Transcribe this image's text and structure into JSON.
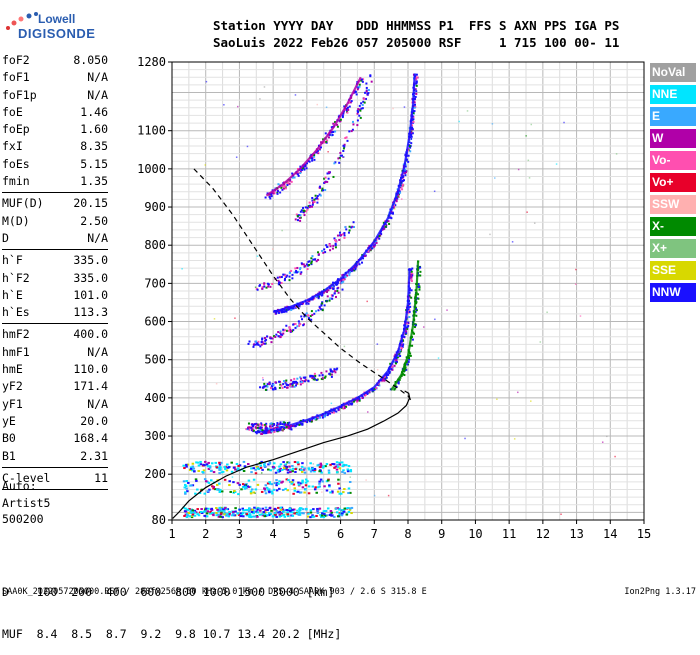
{
  "logo": {
    "line1": "Lowell",
    "line2": "DIGISONDE"
  },
  "header": {
    "line1": "Station YYYY DAY   DDD HHMMSS P1  FFS S AXN PPS IGA PS",
    "line2": "SaoLuis 2022 Feb26 057 205000 RSF     1 715 100 00- 11"
  },
  "params": [
    [
      {
        "k": "foF2",
        "v": "8.050"
      },
      {
        "k": "foF1",
        "v": "N/A"
      },
      {
        "k": "foF1p",
        "v": "N/A"
      },
      {
        "k": "foE",
        "v": "1.46"
      },
      {
        "k": "foEp",
        "v": "1.60"
      },
      {
        "k": "fxI",
        "v": "8.35"
      },
      {
        "k": "foEs",
        "v": "5.15"
      },
      {
        "k": "fmin",
        "v": "1.35"
      }
    ],
    [
      {
        "k": "MUF(D)",
        "v": "20.15"
      },
      {
        "k": "M(D)",
        "v": "2.50"
      },
      {
        "k": "D",
        "v": "N/A"
      }
    ],
    [
      {
        "k": "h`F",
        "v": "335.0"
      },
      {
        "k": "h`F2",
        "v": "335.0"
      },
      {
        "k": "h`E",
        "v": "101.0"
      },
      {
        "k": "h`Es",
        "v": "113.3"
      }
    ],
    [
      {
        "k": "hmF2",
        "v": "400.0"
      },
      {
        "k": "hmF1",
        "v": "N/A"
      },
      {
        "k": "hmE",
        "v": "110.0"
      },
      {
        "k": "yF2",
        "v": "171.4"
      },
      {
        "k": "yF1",
        "v": "N/A"
      },
      {
        "k": "yE",
        "v": "20.0"
      },
      {
        "k": "B0",
        "v": "168.4"
      },
      {
        "k": "B1",
        "v": "2.31"
      }
    ],
    [
      {
        "k": "C-level",
        "v": "11"
      }
    ]
  ],
  "auto": {
    "l1": "Auto:",
    "l2": "Artist5",
    "l3": "500200"
  },
  "legend": [
    {
      "label": "NoVal",
      "color": "#a0a0a0"
    },
    {
      "label": "NNE",
      "color": "#00e5ff"
    },
    {
      "label": "E",
      "color": "#39a9ff"
    },
    {
      "label": "W",
      "color": "#b000a8"
    },
    {
      "label": "Vo-",
      "color": "#ff4fb0"
    },
    {
      "label": "Vo+",
      "color": "#e8002a"
    },
    {
      "label": "SSW",
      "color": "#ffb0b0"
    },
    {
      "label": "X-",
      "color": "#008a00"
    },
    {
      "label": "X+",
      "color": "#7fc47f"
    },
    {
      "label": "SSE",
      "color": "#d8d800"
    },
    {
      "label": "NNW",
      "color": "#1a10ff"
    }
  ],
  "bottom": {
    "l1": "D    100  200  400  600  800 1000 1500 3000 [km]",
    "l2": "MUF  8.4  8.5  8.7  9.2  9.8 10.7 13.4 20.2 [MHz]"
  },
  "footer": "SAA0K_2022057205000.RSF / 280fx256h 50 kHz 5.0 km / DPS-4 SAA0K 903 / 2.6 S 315.8 E",
  "version": "Ion2Png 1.3.17",
  "chart_data": {
    "type": "scatter",
    "title": "",
    "xlabel": "",
    "ylabel": "",
    "xlim": [
      1,
      15
    ],
    "ylim": [
      80,
      1280
    ],
    "x_ticks": [
      1,
      2,
      3,
      4,
      5,
      6,
      7,
      8,
      9,
      10,
      11,
      12,
      13,
      14,
      15
    ],
    "y_ticks": [
      80,
      200,
      300,
      400,
      500,
      600,
      700,
      800,
      900,
      1000,
      1100,
      1280
    ],
    "grid": true,
    "profile": {
      "x": [
        1.02,
        1.2,
        1.5,
        2.0,
        2.6,
        3.2,
        4.0,
        4.8,
        5.5,
        6.2,
        6.8,
        7.3,
        7.7,
        7.95,
        8.05,
        8.02,
        7.9
      ],
      "y": [
        84,
        100,
        130,
        165,
        195,
        218,
        238,
        262,
        283,
        300,
        318,
        340,
        360,
        380,
        400,
        412,
        418
      ]
    },
    "profile_dashed": {
      "x": [
        1.65,
        2.2,
        2.8,
        3.4,
        4.0,
        4.5,
        5.0,
        5.5,
        6.0,
        6.6,
        7.2,
        7.7,
        8.0,
        8.08
      ],
      "y": [
        1000,
        950,
        880,
        800,
        720,
        660,
        610,
        570,
        530,
        490,
        455,
        425,
        405,
        395
      ]
    },
    "traces": [
      {
        "name": "o-trace",
        "x": [
          3.5,
          4.0,
          4.5,
          5.0,
          5.5,
          6.0,
          6.5,
          7.0,
          7.4,
          7.7,
          7.9,
          8.0,
          8.05
        ],
        "y": [
          310,
          318,
          328,
          342,
          358,
          378,
          400,
          428,
          470,
          520,
          580,
          650,
          740
        ],
        "color": "#1a10ff"
      },
      {
        "name": "o-2hop",
        "x": [
          4.0,
          4.5,
          5.0,
          5.5,
          6.0,
          6.5,
          7.0,
          7.4,
          7.7,
          7.9,
          8.05,
          8.15,
          8.2
        ],
        "y": [
          625,
          638,
          655,
          680,
          712,
          755,
          810,
          870,
          940,
          1010,
          1090,
          1170,
          1250
        ],
        "color": "#1a10ff"
      },
      {
        "name": "o-3hop",
        "x": [
          3.8,
          4.3,
          4.8,
          5.3,
          5.8,
          6.2,
          6.6
        ],
        "y": [
          930,
          960,
          1000,
          1050,
          1110,
          1170,
          1240
        ],
        "color": "#b000a8"
      },
      {
        "name": "x-trace",
        "x": [
          7.5,
          7.8,
          8.0,
          8.15,
          8.25,
          8.3
        ],
        "y": [
          420,
          460,
          510,
          590,
          680,
          760
        ],
        "color": "#008a00"
      }
    ]
  }
}
